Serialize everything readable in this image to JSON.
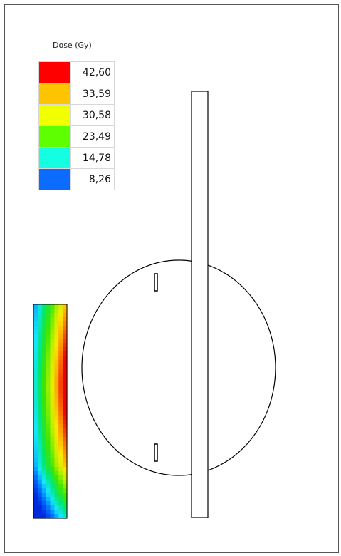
{
  "legend": {
    "title": "Dose (Gy)",
    "items": [
      {
        "label": "42,60",
        "color": "#ff0000"
      },
      {
        "label": "33,59",
        "color": "#ffc400"
      },
      {
        "label": "30,58",
        "color": "#f2ff00"
      },
      {
        "label": "23,49",
        "color": "#5eff00"
      },
      {
        "label": "14,78",
        "color": "#14ffe2"
      },
      {
        "label": "8,26",
        "color": "#0c6cff"
      }
    ]
  }
}
